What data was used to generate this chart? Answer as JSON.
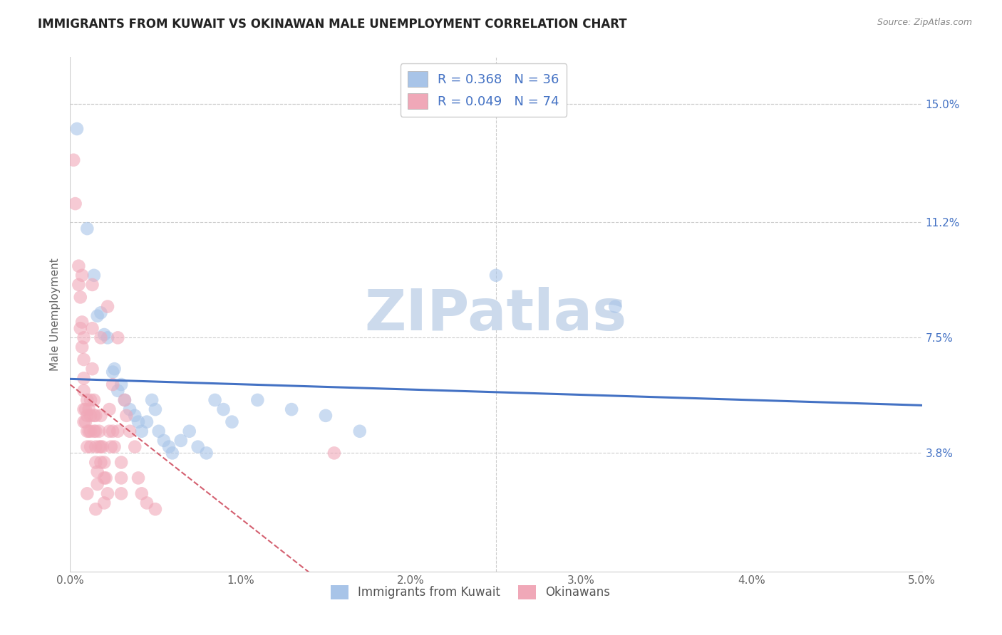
{
  "title": "IMMIGRANTS FROM KUWAIT VS OKINAWAN MALE UNEMPLOYMENT CORRELATION CHART",
  "source": "Source: ZipAtlas.com",
  "ylabel": "Male Unemployment",
  "y_ticks": [
    3.8,
    7.5,
    11.2,
    15.0
  ],
  "x_ticks": [
    0.0,
    1.0,
    2.0,
    3.0,
    4.0,
    5.0
  ],
  "x_range": [
    0.0,
    5.0
  ],
  "y_range": [
    0.0,
    16.5
  ],
  "legend_blue_r": "R = 0.368",
  "legend_blue_n": "N = 36",
  "legend_pink_r": "R = 0.049",
  "legend_pink_n": "N = 74",
  "blue_color": "#a8c4e8",
  "pink_color": "#f0a8b8",
  "line_blue_color": "#4472c4",
  "line_pink_color": "#d46070",
  "watermark_color": "#ccdaec",
  "blue_scatter": [
    [
      0.04,
      14.2
    ],
    [
      0.1,
      11.0
    ],
    [
      0.14,
      9.5
    ],
    [
      0.16,
      8.2
    ],
    [
      0.18,
      8.3
    ],
    [
      0.2,
      7.6
    ],
    [
      0.22,
      7.5
    ],
    [
      0.25,
      6.4
    ],
    [
      0.26,
      6.5
    ],
    [
      0.28,
      5.8
    ],
    [
      0.3,
      6.0
    ],
    [
      0.32,
      5.5
    ],
    [
      0.35,
      5.2
    ],
    [
      0.38,
      5.0
    ],
    [
      0.4,
      4.8
    ],
    [
      0.42,
      4.5
    ],
    [
      0.45,
      4.8
    ],
    [
      0.48,
      5.5
    ],
    [
      0.5,
      5.2
    ],
    [
      0.52,
      4.5
    ],
    [
      0.55,
      4.2
    ],
    [
      0.58,
      4.0
    ],
    [
      0.6,
      3.8
    ],
    [
      0.65,
      4.2
    ],
    [
      0.7,
      4.5
    ],
    [
      0.75,
      4.0
    ],
    [
      0.8,
      3.8
    ],
    [
      0.85,
      5.5
    ],
    [
      0.9,
      5.2
    ],
    [
      0.95,
      4.8
    ],
    [
      1.1,
      5.5
    ],
    [
      1.3,
      5.2
    ],
    [
      1.5,
      5.0
    ],
    [
      1.7,
      4.5
    ],
    [
      2.5,
      9.5
    ],
    [
      3.2,
      8.5
    ]
  ],
  "pink_scatter": [
    [
      0.02,
      13.2
    ],
    [
      0.03,
      11.8
    ],
    [
      0.05,
      9.8
    ],
    [
      0.05,
      9.2
    ],
    [
      0.06,
      8.8
    ],
    [
      0.06,
      7.8
    ],
    [
      0.07,
      9.5
    ],
    [
      0.07,
      8.0
    ],
    [
      0.07,
      7.2
    ],
    [
      0.08,
      7.5
    ],
    [
      0.08,
      6.8
    ],
    [
      0.08,
      6.2
    ],
    [
      0.08,
      5.8
    ],
    [
      0.08,
      5.2
    ],
    [
      0.08,
      4.8
    ],
    [
      0.09,
      5.2
    ],
    [
      0.09,
      4.8
    ],
    [
      0.1,
      5.5
    ],
    [
      0.1,
      5.0
    ],
    [
      0.1,
      4.5
    ],
    [
      0.1,
      4.0
    ],
    [
      0.11,
      5.2
    ],
    [
      0.11,
      4.5
    ],
    [
      0.12,
      5.5
    ],
    [
      0.12,
      5.0
    ],
    [
      0.12,
      4.5
    ],
    [
      0.12,
      4.0
    ],
    [
      0.13,
      9.2
    ],
    [
      0.13,
      7.8
    ],
    [
      0.13,
      6.5
    ],
    [
      0.14,
      5.5
    ],
    [
      0.14,
      5.0
    ],
    [
      0.14,
      4.5
    ],
    [
      0.15,
      5.0
    ],
    [
      0.15,
      4.5
    ],
    [
      0.15,
      4.0
    ],
    [
      0.15,
      3.5
    ],
    [
      0.16,
      3.2
    ],
    [
      0.16,
      2.8
    ],
    [
      0.17,
      4.5
    ],
    [
      0.17,
      4.0
    ],
    [
      0.18,
      7.5
    ],
    [
      0.18,
      5.0
    ],
    [
      0.18,
      4.0
    ],
    [
      0.18,
      3.5
    ],
    [
      0.19,
      4.0
    ],
    [
      0.2,
      3.5
    ],
    [
      0.2,
      3.0
    ],
    [
      0.21,
      3.0
    ],
    [
      0.22,
      8.5
    ],
    [
      0.22,
      2.5
    ],
    [
      0.23,
      5.2
    ],
    [
      0.23,
      4.5
    ],
    [
      0.24,
      4.0
    ],
    [
      0.25,
      6.0
    ],
    [
      0.25,
      4.5
    ],
    [
      0.26,
      4.0
    ],
    [
      0.28,
      7.5
    ],
    [
      0.28,
      4.5
    ],
    [
      0.3,
      3.5
    ],
    [
      0.3,
      3.0
    ],
    [
      0.32,
      5.5
    ],
    [
      0.33,
      5.0
    ],
    [
      0.35,
      4.5
    ],
    [
      0.38,
      4.0
    ],
    [
      0.4,
      3.0
    ],
    [
      0.42,
      2.5
    ],
    [
      0.45,
      2.2
    ],
    [
      0.5,
      2.0
    ],
    [
      1.55,
      3.8
    ],
    [
      0.3,
      2.5
    ],
    [
      0.2,
      2.2
    ],
    [
      0.1,
      2.5
    ],
    [
      0.15,
      2.0
    ]
  ]
}
